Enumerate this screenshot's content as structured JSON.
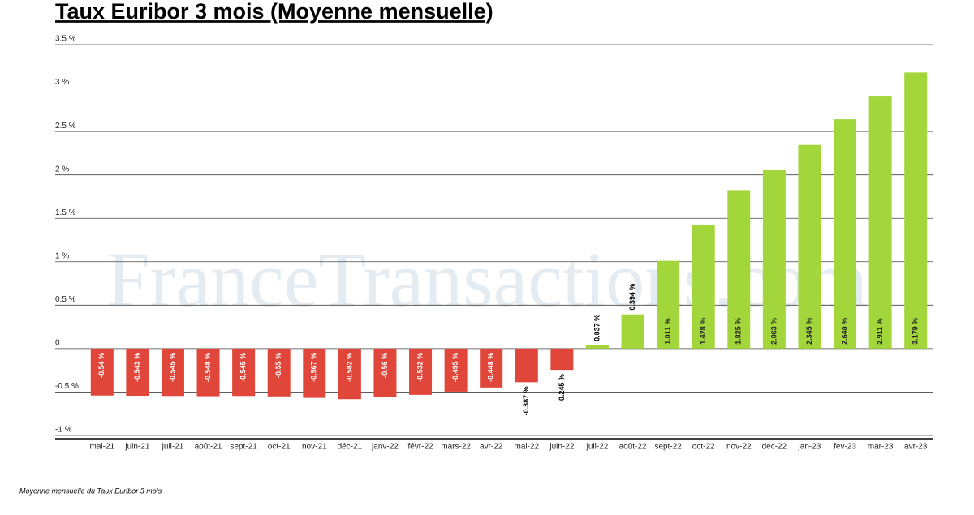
{
  "chart_data": {
    "type": "bar",
    "title": "Taux Euribor 3 mois (Moyenne mensuelle)",
    "note": "Moyenne mensuelle du Taux Euribor 3 mois",
    "watermark": "FranceTransactions.com",
    "categories": [
      "mai-21",
      "juin-21",
      "juil-21",
      "août-21",
      "sept-21",
      "oct-21",
      "nov-21",
      "déc-21",
      "janv-22",
      "févr-22",
      "mars-22",
      "avr-22",
      "mai-22",
      "juin-22",
      "juil-22",
      "août-22",
      "sept-22",
      "oct-22",
      "nov-22",
      "dec-22",
      "jan-23",
      "fev-23",
      "mar-23",
      "avr-23"
    ],
    "values": [
      -0.54,
      -0.543,
      -0.545,
      -0.548,
      -0.545,
      -0.55,
      -0.567,
      -0.582,
      -0.56,
      -0.532,
      -0.495,
      -0.448,
      -0.387,
      -0.245,
      0.037,
      0.394,
      1.011,
      1.428,
      1.825,
      2.063,
      2.345,
      2.64,
      2.911,
      3.179
    ],
    "value_labels": [
      "-0.54 %",
      "-0.543 %",
      "-0.545 %",
      "-0.548 %",
      "-0.545 %",
      "-0.55 %",
      "-0.567 %",
      "-0.582 %",
      "-0.56 %",
      "-0.532 %",
      "-0.495 %",
      "-0.448 %",
      "-0.387 %",
      "-0.245 %",
      "0.037 %",
      "0.394 %",
      "1.011 %",
      "1.428 %",
      "1.825 %",
      "2.063 %",
      "2.345 %",
      "2.640 %",
      "2.911 %",
      "3.179 %"
    ],
    "color_negative": "#e0463a",
    "color_positive": "#a2d63a",
    "ylim": [
      -1,
      3.5
    ],
    "yticks": [
      {
        "value": -1,
        "label": "-1 %"
      },
      {
        "value": -0.5,
        "label": "-0.5 %"
      },
      0,
      {
        "value": 0.5,
        "label": "0.5 %"
      },
      {
        "value": 1,
        "label": "1 %"
      },
      {
        "value": 1.5,
        "label": "1.5 %"
      },
      {
        "value": 2,
        "label": "2 %"
      },
      {
        "value": 2.5,
        "label": "2.5 %"
      },
      {
        "value": 3,
        "label": "3 %"
      },
      {
        "value": 3.5,
        "label": "3.5 %"
      }
    ],
    "grid": true
  }
}
